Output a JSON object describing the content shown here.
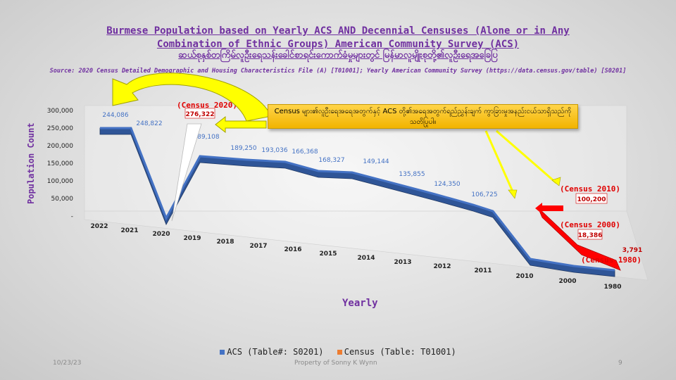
{
  "title": {
    "line1": "Burmese Population based on Yearly ACS AND Decennial Censuses (Alone or in Any",
    "line2": "Combination of Ethnic Groups) American Community Survey (ACS)",
    "line3": "ဆယ်စုနှစ်တကြိမ်လူဦးရေသန်းခေါင်စာရင်းကောက်ခံမှုများတွင် မြန်မာလူမျိုးစုတို့၏လူဦးရေအခြေပြ"
  },
  "source": "Source: 2020 Census Detailed Demographic and Housing Characteristics File (A) [T01001]; Yearly American Community Survey (https://data.census.gov/table) [S0201]",
  "callout": "Census များ၏လူဦးရေအရေအတွက်နှင့် ACS တို့၏အရေအတွက်ရည်ညွှန်းချက် ကွာခြားမှုအနည်းငယ်သာရှိသည်ကိုသတိပြုပါ။",
  "colors": {
    "acs": "#4472c4",
    "census": "#ff0000",
    "title": "#7030a0",
    "arrow_fill": "#ffff00",
    "arrow_edge": "#a0a000"
  },
  "footer": {
    "date": "10/23/23",
    "property": "Property of Sonny K Wynn",
    "page": "9"
  },
  "chart_data": {
    "type": "line",
    "xlabel": "Yearly",
    "ylabel": "Population Count",
    "categories": [
      "2022",
      "2021",
      "2020",
      "2019",
      "2018",
      "2017",
      "2016",
      "2015",
      "2014",
      "2013",
      "2012",
      "2011",
      "2010",
      "2000",
      "1980"
    ],
    "y_ticks": [
      "300,000",
      "250,000",
      "200,000",
      "150,000",
      "100,000",
      "50,000",
      "-"
    ],
    "ylim": [
      0,
      300000
    ],
    "series": [
      {
        "name": "ACS (Table#: S0201)",
        "values": [
          244086,
          248822,
          0,
          189108,
          189250,
          193036,
          166368,
          168327,
          149144,
          135855,
          124350,
          106725,
          0,
          0,
          0
        ],
        "labels": [
          "244,086",
          "248,822",
          "",
          "189,108",
          "189,250",
          "193,036",
          "166,368",
          "168,327",
          "149,144",
          "135,855",
          "124,350",
          "106,725",
          "",
          "",
          ""
        ]
      },
      {
        "name": "Census (Table: T01001)",
        "values": [
          null,
          null,
          276322,
          null,
          null,
          null,
          null,
          null,
          null,
          null,
          null,
          null,
          100200,
          18386,
          3791
        ],
        "labels": [
          "",
          "",
          "276,322",
          "",
          "",
          "",
          "",
          "",
          "",
          "",
          "",
          "",
          "100,200",
          "18,386",
          "3,791"
        ]
      }
    ],
    "annotations": [
      "(Census 2020)",
      "(Census 2010)",
      "(Census 2000)",
      "(Census 1980)"
    ],
    "legend_position": "bottom",
    "grid": false
  }
}
